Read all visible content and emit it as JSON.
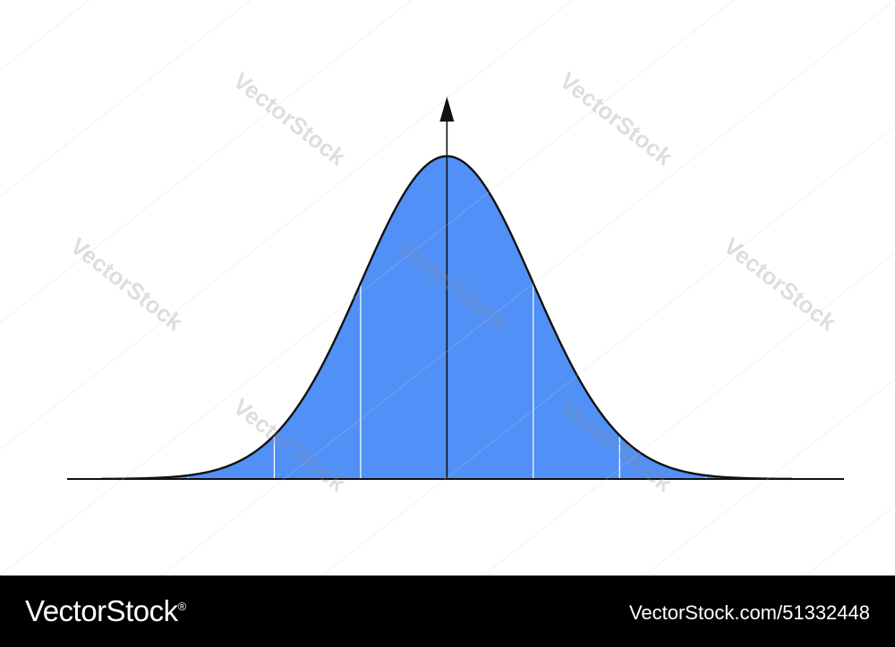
{
  "chart_data": {
    "type": "area",
    "distribution": "normal",
    "x": [
      -4,
      -3.5,
      -3,
      -2.5,
      -2,
      -1.75,
      -1.5,
      -1.25,
      -1,
      -0.75,
      -0.5,
      -0.25,
      0,
      0.25,
      0.5,
      0.75,
      1,
      1.25,
      1.5,
      1.75,
      2,
      2.5,
      3,
      3.5,
      4
    ],
    "y": [
      0.0001,
      0.0009,
      0.0044,
      0.0175,
      0.054,
      0.0863,
      0.1295,
      0.1826,
      0.242,
      0.3011,
      0.3521,
      0.3867,
      0.3989,
      0.3867,
      0.3521,
      0.3011,
      0.242,
      0.1826,
      0.1295,
      0.0863,
      0.054,
      0.0175,
      0.0044,
      0.0009,
      0.0001
    ],
    "xlim": [
      -4.4,
      4.6
    ],
    "ylim": [
      0,
      0.55
    ],
    "dividers": [
      -3,
      -2,
      -1,
      1,
      2,
      3
    ],
    "grid": false,
    "legend": "none",
    "title": "",
    "xlabel": "",
    "ylabel": "",
    "colors": {
      "fill": "#5190f6",
      "outline": "#111111",
      "divider": "#ffffff",
      "axis": "#111111"
    }
  },
  "watermark": {
    "label": "VectorStock"
  },
  "footer": {
    "brand": "VectorStock",
    "brand_registered": "®",
    "image_ref": "VectorStock.com/51332448"
  }
}
